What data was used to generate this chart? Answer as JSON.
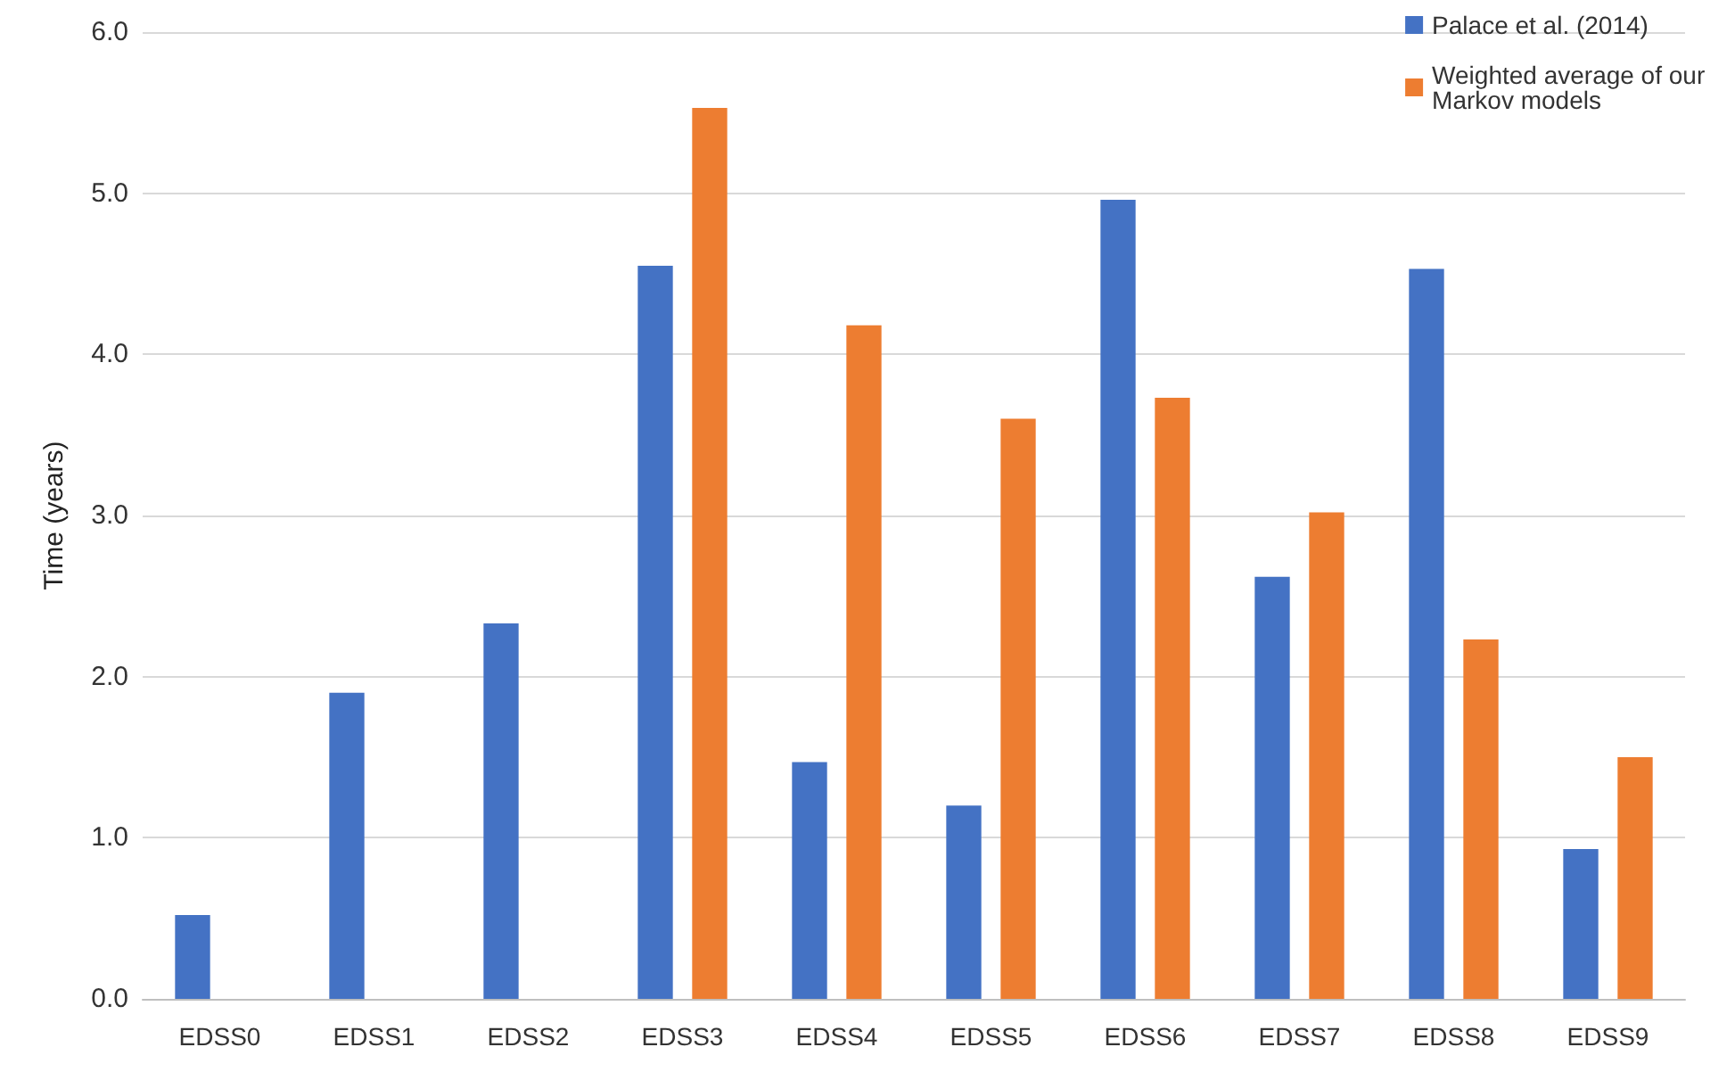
{
  "chart_data": {
    "type": "bar",
    "ylabel": "Time (years)",
    "categories": [
      "EDSS0",
      "EDSS1",
      "EDSS2",
      "EDSS3",
      "EDSS4",
      "EDSS5",
      "EDSS6",
      "EDSS7",
      "EDSS8",
      "EDSS9"
    ],
    "series": [
      {
        "name": "Palace et al. (2014)",
        "color": "#4472c4",
        "values": [
          0.52,
          1.9,
          2.33,
          4.55,
          1.47,
          1.2,
          4.96,
          2.62,
          4.53,
          0.93
        ]
      },
      {
        "name": "Weighted average of our Markov models",
        "color": "#ed7d31",
        "values": [
          null,
          null,
          null,
          5.53,
          4.18,
          3.6,
          3.73,
          3.02,
          2.23,
          1.5
        ]
      }
    ],
    "ylim": [
      0,
      6
    ],
    "yticks": [
      {
        "value": 0,
        "label": "0.0"
      },
      {
        "value": 1,
        "label": "1.0"
      },
      {
        "value": 2,
        "label": "2.0"
      },
      {
        "value": 3,
        "label": "3.0"
      },
      {
        "value": 4,
        "label": "4.0"
      },
      {
        "value": 5,
        "label": "5.0"
      },
      {
        "value": 6,
        "label": "6.0"
      }
    ],
    "grid": "y",
    "legend": "top right"
  }
}
